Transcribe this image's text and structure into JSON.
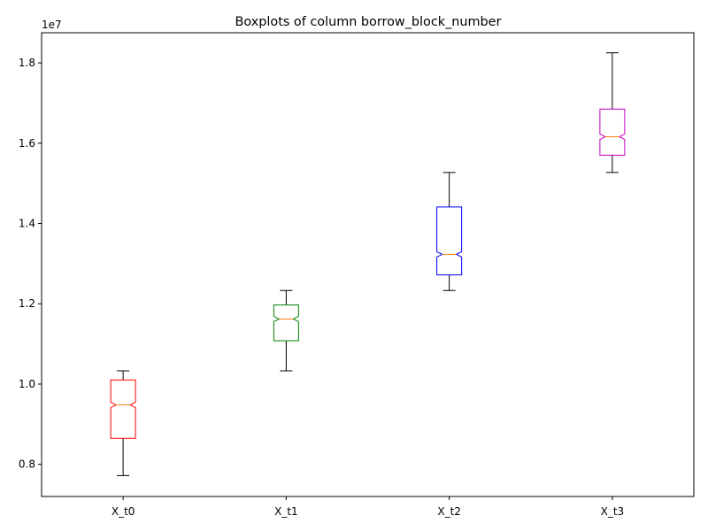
{
  "chart_data": {
    "type": "boxplot",
    "title": "Boxplots of column borrow_block_number",
    "xlabel": "",
    "ylabel": "",
    "y_offset_label": "1e7",
    "ylim": [
      0.72,
      1.875
    ],
    "yticks": [
      0.8,
      1.0,
      1.2,
      1.4,
      1.6,
      1.8
    ],
    "ytick_labels": [
      "0.8",
      "1.0",
      "1.2",
      "1.4",
      "1.6",
      "1.8"
    ],
    "grid": false,
    "notched": true,
    "median_color": "#ff7f0e",
    "whisker_color": "#000000",
    "series": [
      {
        "name": "X_t0",
        "color": "#ff0000",
        "whislo": 0.772,
        "q1": 0.865,
        "med": 0.948,
        "q3": 1.01,
        "whishi": 1.033
      },
      {
        "name": "X_t1",
        "color": "#008000",
        "whislo": 1.033,
        "q1": 1.108,
        "med": 1.162,
        "q3": 1.197,
        "whishi": 1.233
      },
      {
        "name": "X_t2",
        "color": "#0000ff",
        "whislo": 1.233,
        "q1": 1.272,
        "med": 1.323,
        "q3": 1.441,
        "whishi": 1.527
      },
      {
        "name": "X_t3",
        "color": "#bf00bf",
        "whislo": 1.527,
        "q1": 1.57,
        "med": 1.616,
        "q3": 1.685,
        "whishi": 1.825
      }
    ]
  }
}
